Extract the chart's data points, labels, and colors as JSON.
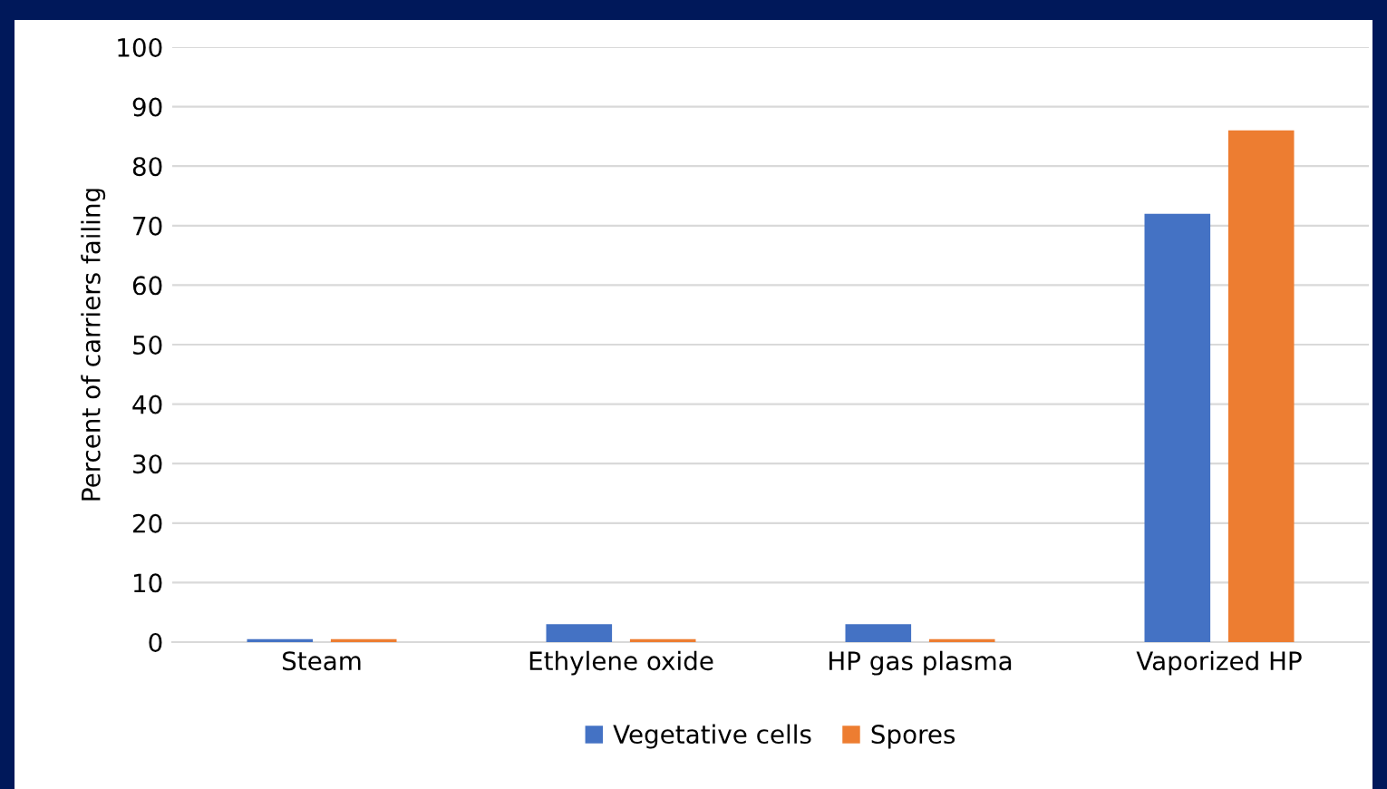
{
  "chart_data": {
    "type": "bar",
    "ylabel": "Percent of carriers failing",
    "categories": [
      "Steam",
      "Ethylene oxide",
      "HP gas plasma",
      "Vaporized HP"
    ],
    "series": [
      {
        "name": "Vegetative cells",
        "color": "#4472c4",
        "values": [
          0.5,
          3,
          3,
          72
        ]
      },
      {
        "name": "Spores",
        "color": "#ed7d31",
        "values": [
          0.5,
          0.5,
          0.5,
          86
        ]
      }
    ],
    "ylim": [
      0,
      100
    ],
    "yticks": [
      0,
      10,
      20,
      30,
      40,
      50,
      60,
      70,
      80,
      90,
      100
    ],
    "grid": "y",
    "legend": "bottom"
  }
}
